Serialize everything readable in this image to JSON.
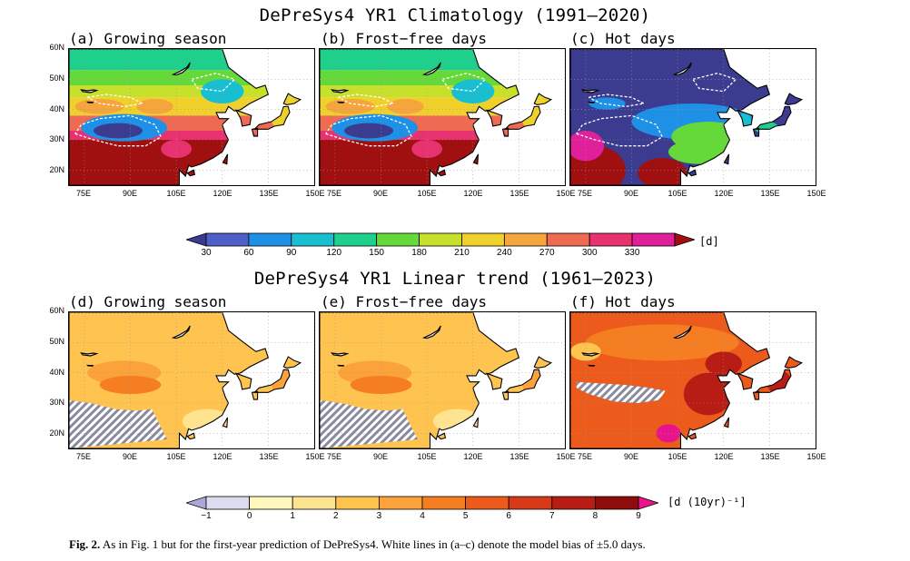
{
  "titles": {
    "top": "DePreSys4 YR1 Climatology (1991–2020)",
    "bottom": "DePreSys4 YR1 Linear trend (1961–2023)"
  },
  "panels": [
    {
      "label": "(a) Growing season",
      "kind": "clim_gs"
    },
    {
      "label": "(b) Frost−free days",
      "kind": "clim_ff"
    },
    {
      "label": "(c) Hot days",
      "kind": "clim_hot"
    },
    {
      "label": "(d) Growing season",
      "kind": "trend_gs"
    },
    {
      "label": "(e) Frost−free days",
      "kind": "trend_ff"
    },
    {
      "label": "(f) Hot days",
      "kind": "trend_hot"
    }
  ],
  "axes": {
    "lat_labels": [
      "60N",
      "50N",
      "40N",
      "30N",
      "20N"
    ],
    "lon_labels": [
      "75E",
      "90E",
      "105E",
      "120E",
      "135E",
      "150E"
    ]
  },
  "colorbar_top": {
    "ticks": [
      "30",
      "60",
      "90",
      "120",
      "150",
      "180",
      "210",
      "240",
      "270",
      "300",
      "330"
    ],
    "unit": "[d]",
    "colors": [
      "#3b3b8f",
      "#4f5fc7",
      "#1e90e6",
      "#19bfd1",
      "#1fcf8c",
      "#66d93a",
      "#c6e02b",
      "#f0d02a",
      "#f4a53b",
      "#ee6a52",
      "#e8326f",
      "#e0209b",
      "#a01010"
    ]
  },
  "colorbar_bottom": {
    "ticks": [
      "−1",
      "0",
      "1",
      "2",
      "3",
      "4",
      "5",
      "6",
      "7",
      "8",
      "9"
    ],
    "unit": "[d (10yr)⁻¹]",
    "colors": [
      "#a9a9d6",
      "#dcdcef",
      "#fff7bc",
      "#fee391",
      "#fec44f",
      "#fba23a",
      "#f57d22",
      "#ec5a1c",
      "#d83a17",
      "#b81d15",
      "#8f0c0c",
      "#e8148c"
    ]
  },
  "caption": {
    "fig_label": "Fig. 2.",
    "text": " As in Fig. 1 but for the first-year prediction of DePreSys4. White lines in (a–c) denote the model bias of ±5.0 days."
  }
}
